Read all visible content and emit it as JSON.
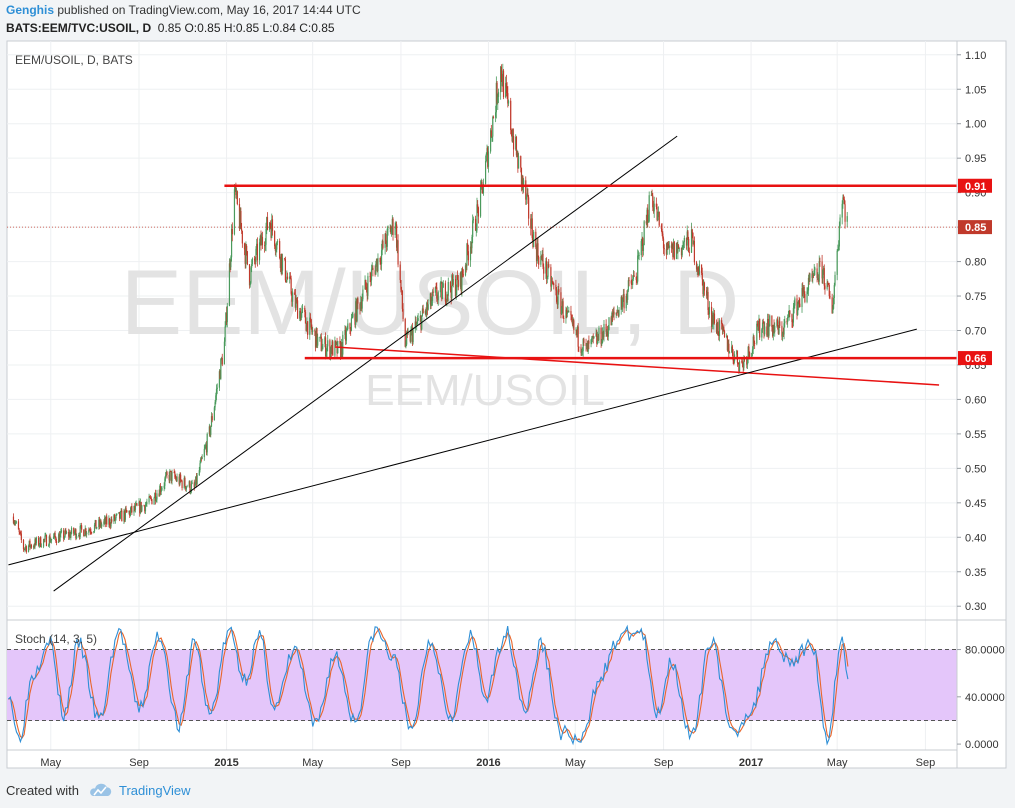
{
  "header": {
    "author": "Genghis",
    "published_text": "published on TradingView.com, May 16, 2017 14:44 UTC",
    "symbol_line": "BATS:EEM/TVC:USOIL, D",
    "ohlc_values": "0.85 O:0.85 H:0.85 L:0.84 C:0.85"
  },
  "footer": {
    "created_with": "Created with",
    "brand": "TradingView"
  },
  "colors": {
    "candle_up": "#4a9a5c",
    "candle_down": "#c0392b",
    "level_line": "#e81212",
    "trend_line": "#000000",
    "stoch_k": "#2e8fd6",
    "stoch_d": "#e8662c",
    "stoch_band": "#e4c6fa"
  },
  "chart_data": {
    "type": "candlestick",
    "title": "EEM/USOIL, D, BATS",
    "watermark_big": "EEM/USOIL, D",
    "watermark_small": "EEM/USOIL",
    "y_ticks": [
      "1.10",
      "1.05",
      "1.00",
      "0.95",
      "0.90",
      "0.85",
      "0.80",
      "0.75",
      "0.70",
      "0.65",
      "0.60",
      "0.55",
      "0.50",
      "0.45",
      "0.40",
      "0.35",
      "0.30"
    ],
    "ylim": [
      0.28,
      1.12
    ],
    "x_labels": [
      "May",
      "Sep",
      "2015",
      "May",
      "Sep",
      "2016",
      "May",
      "Sep",
      "2017",
      "May",
      "Sep"
    ],
    "x_labels_bold": [
      "2015",
      "2016",
      "2017"
    ],
    "price_path": [
      [
        "2014-03-10",
        0.43
      ],
      [
        "2014-03-24",
        0.385
      ],
      [
        "2014-04-21",
        0.395
      ],
      [
        "2014-06-16",
        0.41
      ],
      [
        "2014-07-28",
        0.425
      ],
      [
        "2014-09-15",
        0.45
      ],
      [
        "2014-10-13",
        0.49
      ],
      [
        "2014-11-17",
        0.47
      ],
      [
        "2014-12-08",
        0.55
      ],
      [
        "2014-12-29",
        0.68
      ],
      [
        "2015-01-12",
        0.9
      ],
      [
        "2015-02-02",
        0.78
      ],
      [
        "2015-03-02",
        0.86
      ],
      [
        "2015-04-06",
        0.74
      ],
      [
        "2015-05-11",
        0.68
      ],
      [
        "2015-06-08",
        0.67
      ],
      [
        "2015-07-13",
        0.76
      ],
      [
        "2015-08-24",
        0.86
      ],
      [
        "2015-09-07",
        0.68
      ],
      [
        "2015-10-19",
        0.75
      ],
      [
        "2015-11-23",
        0.77
      ],
      [
        "2015-12-21",
        0.89
      ],
      [
        "2016-01-18",
        1.08
      ],
      [
        "2016-02-08",
        0.96
      ],
      [
        "2016-03-07",
        0.82
      ],
      [
        "2016-04-18",
        0.72
      ],
      [
        "2016-05-16",
        0.67
      ],
      [
        "2016-06-13",
        0.7
      ],
      [
        "2016-07-25",
        0.78
      ],
      [
        "2016-08-15",
        0.9
      ],
      [
        "2016-09-05",
        0.81
      ],
      [
        "2016-10-10",
        0.83
      ],
      [
        "2016-11-07",
        0.72
      ],
      [
        "2016-12-05",
        0.67
      ],
      [
        "2016-12-19",
        0.65
      ],
      [
        "2017-01-16",
        0.71
      ],
      [
        "2017-02-13",
        0.7
      ],
      [
        "2017-03-13",
        0.75
      ],
      [
        "2017-04-10",
        0.79
      ],
      [
        "2017-04-24",
        0.73
      ],
      [
        "2017-05-08",
        0.9
      ],
      [
        "2017-05-16",
        0.85
      ]
    ],
    "last_price_label": "0.85",
    "levels": [
      {
        "label": "0.91",
        "value": 0.91,
        "from": "2014-12-29",
        "to": "2017-09-30"
      },
      {
        "label": "0.66",
        "value": 0.66,
        "from": "2015-04-20",
        "to": "2017-09-30"
      }
    ],
    "trendlines": [
      {
        "color": "red",
        "from": [
          "2015-06-01",
          0.676
        ],
        "to": [
          "2017-09-20",
          0.621
        ]
      },
      {
        "color": "black",
        "from": [
          "2014-05-05",
          0.322
        ],
        "to": [
          "2016-09-20",
          0.982
        ]
      },
      {
        "color": "black",
        "from": [
          "2014-03-03",
          0.36
        ],
        "to": [
          "2017-08-20",
          0.702
        ]
      }
    ],
    "stoch": {
      "title": "Stoch (14, 3, 5)",
      "ticks": [
        "80.0000",
        "40.0000",
        "0.0000"
      ],
      "ylim": [
        -5,
        105
      ],
      "band": [
        20,
        80
      ],
      "k_series": [
        [
          "2014-03-03",
          45
        ],
        [
          "2014-03-17",
          5
        ],
        [
          "2014-04-07",
          60
        ],
        [
          "2014-04-28",
          90
        ],
        [
          "2014-05-19",
          25
        ],
        [
          "2014-06-09",
          85
        ],
        [
          "2014-07-07",
          20
        ],
        [
          "2014-08-04",
          95
        ],
        [
          "2014-09-01",
          30
        ],
        [
          "2014-09-29",
          92
        ],
        [
          "2014-10-27",
          15
        ],
        [
          "2014-11-17",
          88
        ],
        [
          "2014-12-08",
          25
        ],
        [
          "2015-01-05",
          95
        ],
        [
          "2015-01-26",
          55
        ],
        [
          "2015-02-16",
          90
        ],
        [
          "2015-03-09",
          30
        ],
        [
          "2015-04-06",
          80
        ],
        [
          "2015-05-04",
          15
        ],
        [
          "2015-06-01",
          75
        ],
        [
          "2015-06-29",
          20
        ],
        [
          "2015-07-27",
          96
        ],
        [
          "2015-08-24",
          70
        ],
        [
          "2015-09-14",
          10
        ],
        [
          "2015-10-12",
          88
        ],
        [
          "2015-11-09",
          25
        ],
        [
          "2015-12-07",
          90
        ],
        [
          "2015-12-28",
          40
        ],
        [
          "2016-01-25",
          95
        ],
        [
          "2016-02-22",
          30
        ],
        [
          "2016-03-14",
          85
        ],
        [
          "2016-04-11",
          10
        ],
        [
          "2016-05-09",
          2
        ],
        [
          "2016-06-06",
          60
        ],
        [
          "2016-07-04",
          92
        ],
        [
          "2016-08-01",
          95
        ],
        [
          "2016-08-22",
          25
        ],
        [
          "2016-09-12",
          70
        ],
        [
          "2016-10-10",
          5
        ],
        [
          "2016-11-07",
          90
        ],
        [
          "2016-12-05",
          8
        ],
        [
          "2017-01-02",
          30
        ],
        [
          "2017-01-30",
          88
        ],
        [
          "2017-02-27",
          70
        ],
        [
          "2017-03-27",
          85
        ],
        [
          "2017-04-17",
          5
        ],
        [
          "2017-05-08",
          90
        ],
        [
          "2017-05-16",
          55
        ]
      ]
    }
  }
}
